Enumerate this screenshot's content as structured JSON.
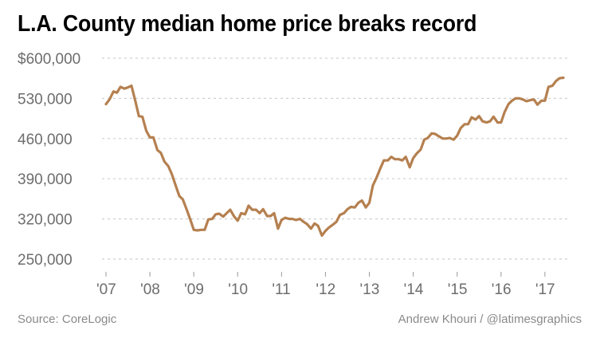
{
  "chart_data": {
    "type": "line",
    "title": "L.A. County median home price breaks record",
    "xlabel": "",
    "ylabel": "",
    "x_tick_labels": [
      "'07",
      "'08",
      "'09",
      "'10",
      "'11",
      "'12",
      "'13",
      "'14",
      "'15",
      "'16",
      "'17"
    ],
    "y_tick_labels": [
      "$600,000",
      "530,000",
      "460,000",
      "390,000",
      "320,000",
      "250,000"
    ],
    "y_ticks": [
      600000,
      530000,
      460000,
      390000,
      320000,
      250000
    ],
    "ylim": [
      250000,
      600000
    ],
    "xlim": [
      2007.0,
      2017.42
    ],
    "grid": true,
    "line_color": "#b58050",
    "series": [
      {
        "x": [
          2007.0,
          2007.08,
          2007.17,
          2007.25,
          2007.33,
          2007.42,
          2007.5,
          2007.58,
          2007.67,
          2007.75,
          2007.83,
          2007.92,
          2008.0,
          2008.08,
          2008.17,
          2008.25,
          2008.33,
          2008.42,
          2008.5,
          2008.58,
          2008.67,
          2008.75,
          2008.83,
          2008.92,
          2009.0,
          2009.08,
          2009.17,
          2009.25,
          2009.33,
          2009.42,
          2009.5,
          2009.58,
          2009.67,
          2009.75,
          2009.83,
          2009.92,
          2010.0,
          2010.08,
          2010.17,
          2010.25,
          2010.33,
          2010.42,
          2010.5,
          2010.58,
          2010.67,
          2010.75,
          2010.83,
          2010.92,
          2011.0,
          2011.08,
          2011.17,
          2011.25,
          2011.33,
          2011.42,
          2011.5,
          2011.58,
          2011.67,
          2011.75,
          2011.83,
          2011.92,
          2012.0,
          2012.08,
          2012.17,
          2012.25,
          2012.33,
          2012.42,
          2012.5,
          2012.58,
          2012.67,
          2012.75,
          2012.83,
          2012.92,
          2013.0,
          2013.08,
          2013.17,
          2013.25,
          2013.33,
          2013.42,
          2013.5,
          2013.58,
          2013.67,
          2013.75,
          2013.83,
          2013.92,
          2014.0,
          2014.08,
          2014.17,
          2014.25,
          2014.33,
          2014.42,
          2014.5,
          2014.58,
          2014.67,
          2014.75,
          2014.83,
          2014.92,
          2015.0,
          2015.08,
          2015.17,
          2015.25,
          2015.33,
          2015.42,
          2015.5,
          2015.58,
          2015.67,
          2015.75,
          2015.83,
          2015.92,
          2016.0,
          2016.08,
          2016.17,
          2016.25,
          2016.33,
          2016.42,
          2016.5,
          2016.58,
          2016.67,
          2016.75,
          2016.83,
          2016.92,
          2017.0,
          2017.08,
          2017.17,
          2017.25,
          2017.33,
          2017.42
        ],
        "values": [
          520000,
          528000,
          542000,
          540000,
          550000,
          547000,
          549000,
          552000,
          525000,
          499000,
          498000,
          473000,
          462000,
          462000,
          440000,
          435000,
          420000,
          412000,
          398000,
          380000,
          360000,
          354000,
          338000,
          319000,
          301000,
          300000,
          301000,
          301000,
          319000,
          320000,
          328000,
          329000,
          324000,
          330000,
          336000,
          324000,
          317000,
          330000,
          328000,
          343000,
          336000,
          336000,
          330000,
          337000,
          325000,
          325000,
          330000,
          303000,
          318000,
          322000,
          320000,
          320000,
          318000,
          320000,
          315000,
          311000,
          303000,
          312000,
          308000,
          291000,
          299000,
          305000,
          310000,
          315000,
          327000,
          330000,
          337000,
          341000,
          340000,
          348000,
          352000,
          340000,
          348000,
          378000,
          393000,
          408000,
          422000,
          422000,
          428000,
          424000,
          424000,
          422000,
          428000,
          410000,
          426000,
          434000,
          441000,
          458000,
          461000,
          469000,
          468000,
          464000,
          460000,
          460000,
          461000,
          458000,
          465000,
          478000,
          485000,
          485000,
          497000,
          493000,
          499000,
          490000,
          488000,
          490000,
          498000,
          488000,
          488000,
          506000,
          520000,
          526000,
          530000,
          530000,
          528000,
          525000,
          527000,
          528000,
          519000,
          526000,
          526000,
          550000,
          552000,
          560000,
          565000,
          566000
        ]
      }
    ]
  },
  "footer": {
    "source": "Source: CoreLogic",
    "credit": "Andrew Khouri / @latimesgraphics"
  }
}
